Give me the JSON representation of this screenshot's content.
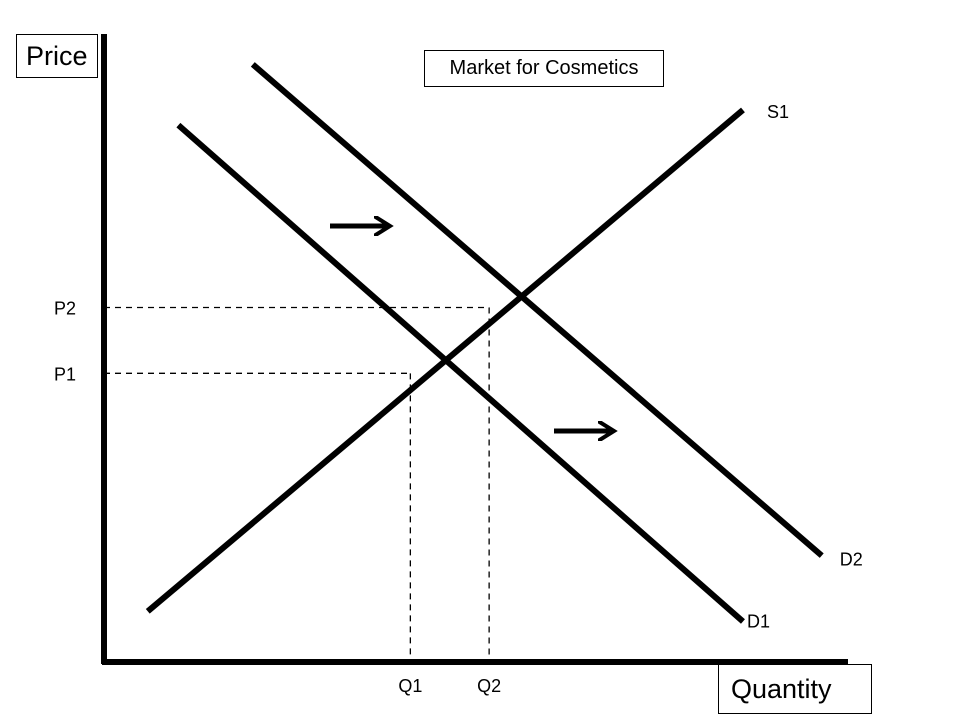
{
  "chart_data": {
    "type": "line",
    "title": "Market for Cosmetics",
    "xlabel": "Quantity",
    "ylabel": "Price",
    "series": [
      {
        "name": "S1",
        "points": [
          [
            0.5,
            0.5
          ],
          [
            7.3,
            5.45
          ]
        ]
      },
      {
        "name": "D1",
        "points": [
          [
            0.85,
            5.3
          ],
          [
            7.3,
            0.4
          ]
        ]
      },
      {
        "name": "D2",
        "points": [
          [
            1.7,
            5.9
          ],
          [
            8.2,
            1.05
          ]
        ]
      }
    ],
    "equilibria": [
      {
        "price_label": "P1",
        "quantity_label": "Q1",
        "x": 3.5,
        "y": 2.85
      },
      {
        "price_label": "P2",
        "quantity_label": "Q2",
        "x": 4.4,
        "y": 3.5
      }
    ],
    "annotations": [
      "shift-right-arrow",
      "shift-right-arrow"
    ],
    "xlim": [
      0,
      8.5
    ],
    "ylim": [
      0,
      6.2
    ],
    "grid": false,
    "color": "#000000"
  }
}
